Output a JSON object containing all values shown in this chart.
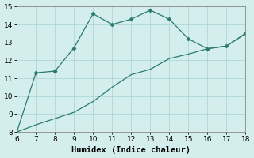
{
  "xlabel": "Humidex (Indice chaleur)",
  "xlim": [
    6,
    18
  ],
  "ylim": [
    8,
    15
  ],
  "xticks": [
    6,
    7,
    8,
    9,
    10,
    11,
    12,
    13,
    14,
    15,
    16,
    17,
    18
  ],
  "yticks": [
    8,
    9,
    10,
    11,
    12,
    13,
    14,
    15
  ],
  "line1_x": [
    6,
    7,
    8,
    8,
    9,
    10,
    11,
    12,
    13,
    14,
    15,
    16,
    16,
    17,
    18
  ],
  "line1_y": [
    8.0,
    11.3,
    11.4,
    11.4,
    12.7,
    14.6,
    14.0,
    14.3,
    14.8,
    14.3,
    13.2,
    12.65,
    12.65,
    12.8,
    13.5
  ],
  "line2_x": [
    6,
    7,
    8,
    9,
    10,
    11,
    12,
    13,
    14,
    15,
    16,
    17,
    18
  ],
  "line2_y": [
    8.0,
    8.4,
    8.75,
    9.1,
    9.7,
    10.5,
    11.2,
    11.5,
    12.1,
    12.35,
    12.65,
    12.8,
    13.5
  ],
  "line_color": "#2a7a6e",
  "bg_color": "#d4eeed",
  "grid_color": "#b0d8d5",
  "tick_fontsize": 6.5,
  "label_fontsize": 7.5
}
